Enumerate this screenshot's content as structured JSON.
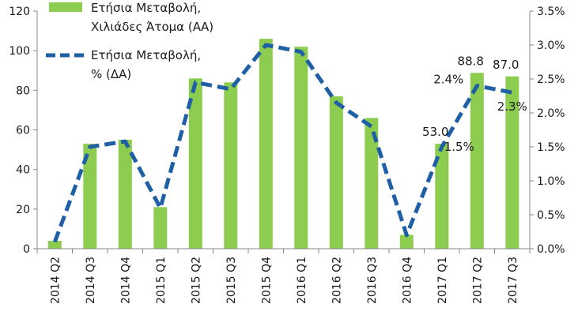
{
  "chart_data": {
    "type": "bar+line",
    "categories": [
      "2014 Q2",
      "2014 Q3",
      "2014 Q4",
      "2015 Q1",
      "2015 Q2",
      "2015 Q3",
      "2015 Q4",
      "2016 Q1",
      "2016 Q2",
      "2016 Q3",
      "2016 Q4",
      "2017 Q1",
      "2017 Q2",
      "2017 Q3"
    ],
    "series": [
      {
        "name": "Ετήσια Μεταβολή, Χιλιάδες Άτομα (ΑΑ)",
        "type": "bar",
        "axis": "left",
        "values": [
          4,
          53,
          55,
          21,
          86,
          84,
          106,
          102,
          77,
          66,
          7,
          53.0,
          88.8,
          87.0
        ],
        "labels": [
          "",
          "",
          "",
          "",
          "",
          "",
          "",
          "",
          "",
          "",
          "",
          "53.0",
          "88.8",
          "87.0"
        ]
      },
      {
        "name": "Ετήσια Μεταβολή, % (ΔΑ)",
        "type": "line",
        "axis": "right",
        "values": [
          0.1,
          1.5,
          1.58,
          0.6,
          2.45,
          2.35,
          3.0,
          2.9,
          2.15,
          1.8,
          0.2,
          1.5,
          2.4,
          2.3
        ],
        "labels": [
          "",
          "",
          "",
          "",
          "",
          "",
          "",
          "",
          "",
          "",
          "",
          "1.5%",
          "2.4%",
          "2.3%"
        ]
      }
    ],
    "y_left": {
      "min": 0,
      "max": 120,
      "ticks": [
        "0",
        "20",
        "40",
        "60",
        "80",
        "100",
        "120"
      ]
    },
    "y_right": {
      "min": 0,
      "max": 3.5,
      "ticks": [
        "0.0%",
        "0.5%",
        "1.0%",
        "1.5%",
        "2.0%",
        "2.5%",
        "3.0%",
        "3.5%"
      ]
    },
    "legend": {
      "position": "top-left",
      "bar_label_lines": [
        "Ετήσια Μεταβολή,",
        "Χιλιάδες Άτομα (ΑΑ)"
      ],
      "line_label_lines": [
        "Ετήσια Μεταβολή,",
        "% (ΔΑ)"
      ]
    },
    "colors": {
      "bar": "#8ccc4e",
      "line": "#1f5fa6",
      "axis": "#888888"
    },
    "grid": false
  }
}
